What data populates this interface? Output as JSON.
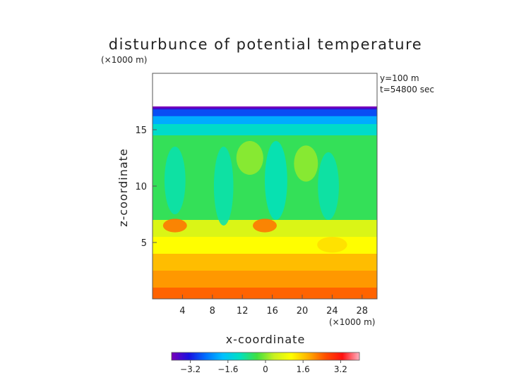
{
  "chart_data": {
    "type": "heatmap",
    "title": "disturbunce of potential temperature",
    "scale_note_top": "(×1000 m)",
    "scale_note_bottom": "(×1000 m)",
    "xlabel": "x-coordinate",
    "ylabel": "z-coordinate",
    "annotations": [
      "y=100 m",
      "t=54800 sec"
    ],
    "xlim": [
      0,
      30
    ],
    "ylim": [
      0,
      20
    ],
    "x_ticks": [
      4,
      8,
      12,
      16,
      20,
      24,
      28
    ],
    "x_tick_labels": [
      "4",
      "8",
      "12",
      "16",
      "20",
      "24",
      "28"
    ],
    "y_ticks": [
      5,
      10,
      15
    ],
    "y_tick_labels": [
      "5",
      "10",
      "15"
    ],
    "data_top_z": 17,
    "colorbar": {
      "range": [
        -4,
        4
      ],
      "ticks": [
        -3.2,
        -1.6,
        0,
        1.6,
        3.2
      ],
      "tick_labels": [
        "−3.2",
        "−1.6",
        "0",
        "1.6",
        "3.2"
      ],
      "colors": [
        "#7a00b8",
        "#1a10e0",
        "#0070ff",
        "#00c0ff",
        "#00e0c0",
        "#40e040",
        "#c8f020",
        "#ffff00",
        "#ffb000",
        "#ff5000",
        "#ff1010",
        "#ffb0c0"
      ]
    },
    "bands": [
      {
        "z0": 16.8,
        "z1": 17.0,
        "value": -3.6
      },
      {
        "z0": 16.2,
        "z1": 16.8,
        "value": -2.8
      },
      {
        "z0": 15.5,
        "z1": 16.2,
        "value": -2.0
      },
      {
        "z0": 14.5,
        "z1": 15.5,
        "value": -1.2
      },
      {
        "z0": 7.0,
        "z1": 14.5,
        "value": -0.5
      },
      {
        "z0": 5.5,
        "z1": 7.0,
        "value": 0.6
      },
      {
        "z0": 4.0,
        "z1": 5.5,
        "value": 1.1
      },
      {
        "z0": 2.5,
        "z1": 4.0,
        "value": 1.7
      },
      {
        "z0": 1.0,
        "z1": 2.5,
        "value": 2.0
      },
      {
        "z0": 0.0,
        "z1": 1.0,
        "value": 2.4
      }
    ],
    "blobs": [
      {
        "x": 3.0,
        "z": 6.5,
        "rx": 1.6,
        "rz": 0.6,
        "value": 2.3
      },
      {
        "x": 15.0,
        "z": 6.5,
        "rx": 1.6,
        "rz": 0.6,
        "value": 2.3
      },
      {
        "x": 24.0,
        "z": 4.8,
        "rx": 2.0,
        "rz": 0.7,
        "value": 1.4
      },
      {
        "x": 3.0,
        "z": 10.5,
        "rx": 1.4,
        "rz": 3.0,
        "value": -1.0
      },
      {
        "x": 9.5,
        "z": 10.0,
        "rx": 1.3,
        "rz": 3.5,
        "value": -1.0
      },
      {
        "x": 16.5,
        "z": 10.5,
        "rx": 1.5,
        "rz": 3.5,
        "value": -1.1
      },
      {
        "x": 23.5,
        "z": 10.0,
        "rx": 1.4,
        "rz": 3.0,
        "value": -1.0
      },
      {
        "x": 13.0,
        "z": 12.5,
        "rx": 1.8,
        "rz": 1.5,
        "value": 0.1
      },
      {
        "x": 20.5,
        "z": 12.0,
        "rx": 1.6,
        "rz": 1.6,
        "value": 0.1
      }
    ]
  }
}
